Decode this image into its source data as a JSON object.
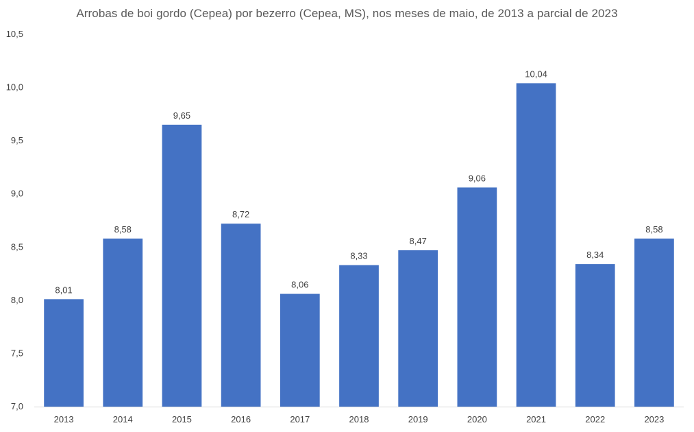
{
  "chart_data": {
    "type": "bar",
    "title": "Arrobas de boi gordo (Cepea) por bezerro (Cepea, MS), nos meses de maio, de 2013 a parcial de 2023",
    "xlabel": "",
    "ylabel": "",
    "categories": [
      "2013",
      "2014",
      "2015",
      "2016",
      "2017",
      "2018",
      "2019",
      "2020",
      "2021",
      "2022",
      "2023"
    ],
    "values": [
      8.01,
      8.58,
      9.65,
      8.72,
      8.06,
      8.33,
      8.47,
      9.06,
      10.04,
      8.34,
      8.58
    ],
    "data_labels": [
      "8,01",
      "8,58",
      "9,65",
      "8,72",
      "8,06",
      "8,33",
      "8,47",
      "9,06",
      "10,04",
      "8,34",
      "8,58"
    ],
    "ylim": [
      7.0,
      10.5
    ],
    "yticks": [
      7.0,
      7.5,
      8.0,
      8.5,
      9.0,
      9.5,
      10.0,
      10.5
    ],
    "ytick_labels": [
      "7,0",
      "7,5",
      "8,0",
      "8,5",
      "9,0",
      "9,5",
      "10,0",
      "10,5"
    ],
    "grid": false,
    "legend": "none",
    "bar_color": "#4472C4",
    "baseline_color": "#D9D9D9"
  }
}
